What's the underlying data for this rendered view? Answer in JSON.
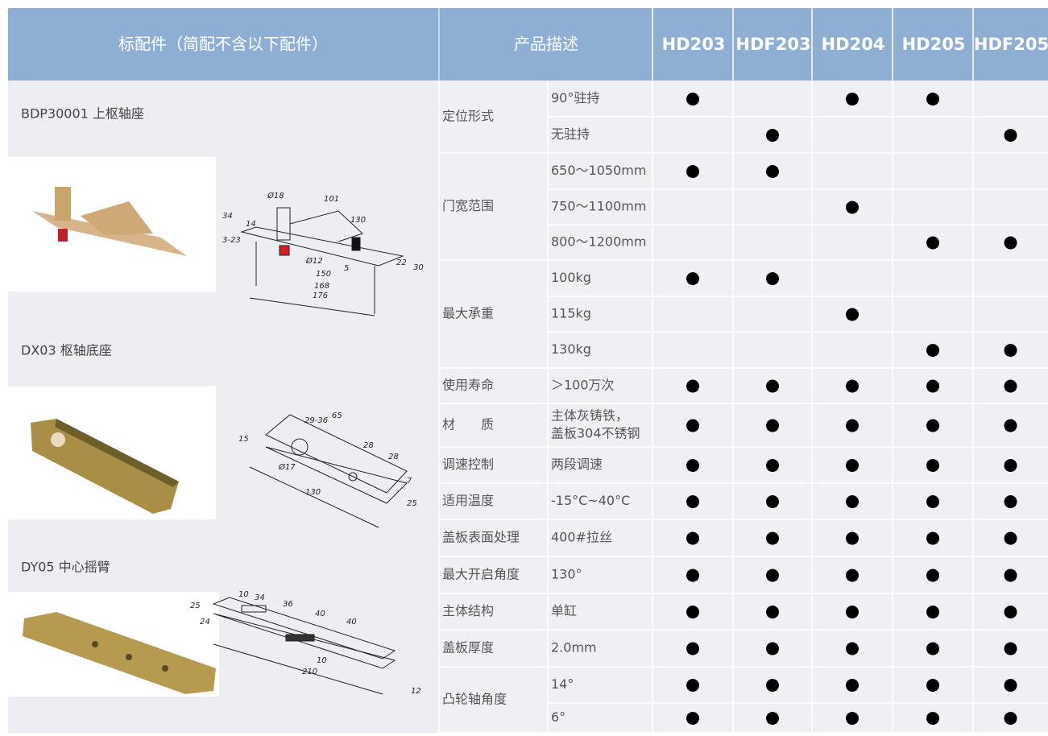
{
  "header": {
    "accessories_title": "标配件（简配不含以下配件）",
    "description_title": "产品描述",
    "models": [
      "HD203",
      "HDF203",
      "HD204",
      "HD205",
      "HDF205"
    ]
  },
  "accessories": [
    {
      "name": "BDP30001 上枢轴座",
      "dims": [
        "Ø18",
        "101",
        "34",
        "14",
        "3-23",
        "130",
        "Ø12",
        "5",
        "150",
        "168",
        "176",
        "22",
        "30"
      ]
    },
    {
      "name": "DX03 枢轴底座",
      "dims": [
        "29-36",
        "65",
        "15",
        "28",
        "28",
        "Ø17",
        "7",
        "130",
        "25"
      ]
    },
    {
      "name": "DY05 中心摇臂",
      "dims": [
        "25",
        "10",
        "34",
        "36",
        "40",
        "40",
        "24",
        "210",
        "10",
        "12"
      ]
    }
  ],
  "specs": [
    {
      "label": "定位形式",
      "rows": [
        {
          "desc": "90°驻持",
          "cells": [
            "●",
            null,
            "●",
            "●",
            null
          ]
        },
        {
          "desc": "无驻持",
          "cells": [
            null,
            "●",
            null,
            null,
            "●"
          ]
        }
      ]
    },
    {
      "label": "门宽范围",
      "rows": [
        {
          "desc": "650～1050mm",
          "cells": [
            "●",
            "●",
            null,
            null,
            null
          ]
        },
        {
          "desc": "750～1100mm",
          "cells": [
            null,
            null,
            "●",
            null,
            null
          ]
        },
        {
          "desc": "800～1200mm",
          "cells": [
            null,
            null,
            null,
            "●",
            "●"
          ]
        }
      ]
    },
    {
      "label": "最大承重",
      "rows": [
        {
          "desc": "100kg",
          "cells": [
            "●",
            "●",
            null,
            null,
            null
          ]
        },
        {
          "desc": "115kg",
          "cells": [
            null,
            null,
            "●",
            null,
            null
          ]
        },
        {
          "desc": "130kg",
          "cells": [
            null,
            null,
            null,
            "●",
            "●"
          ]
        }
      ]
    },
    {
      "label": "使用寿命",
      "rows": [
        {
          "desc": "＞100万次",
          "cells": [
            "●",
            "●",
            "●",
            "●",
            "●"
          ]
        }
      ]
    },
    {
      "label": "材　　质",
      "rows": [
        {
          "desc": [
            "主体灰铸铁，",
            "盖板304不锈钢"
          ],
          "cells": [
            "●",
            "●",
            "●",
            "●",
            "●"
          ]
        }
      ]
    },
    {
      "label": "调速控制",
      "rows": [
        {
          "desc": "两段调速",
          "cells": [
            "●",
            "●",
            "●",
            "●",
            "●"
          ]
        }
      ]
    },
    {
      "label": "适用温度",
      "rows": [
        {
          "desc": "-15°C~40°C",
          "cells": [
            "●",
            "●",
            "●",
            "●",
            "●"
          ]
        }
      ]
    },
    {
      "label": "盖板表面处理",
      "rows": [
        {
          "desc": "400#拉丝",
          "cells": [
            "●",
            "●",
            "●",
            "●",
            "●"
          ]
        }
      ]
    },
    {
      "label": "最大开启角度",
      "rows": [
        {
          "desc": "130°",
          "cells": [
            "●",
            "●",
            "●",
            "●",
            "●"
          ]
        }
      ]
    },
    {
      "label": "主体结构",
      "rows": [
        {
          "desc": "单缸",
          "cells": [
            "●",
            "●",
            "●",
            "●",
            "●"
          ]
        }
      ]
    },
    {
      "label": "盖板厚度",
      "rows": [
        {
          "desc": "2.0mm",
          "cells": [
            "●",
            "●",
            "●",
            "●",
            "●"
          ]
        }
      ]
    },
    {
      "label": "凸轮轴角度",
      "rows": [
        {
          "desc": "14°",
          "cells": [
            "●",
            "●",
            "●",
            "●",
            "●"
          ]
        },
        {
          "desc": "6°",
          "cells": [
            "●",
            "●",
            "●",
            "●",
            "●"
          ]
        }
      ]
    }
  ]
}
